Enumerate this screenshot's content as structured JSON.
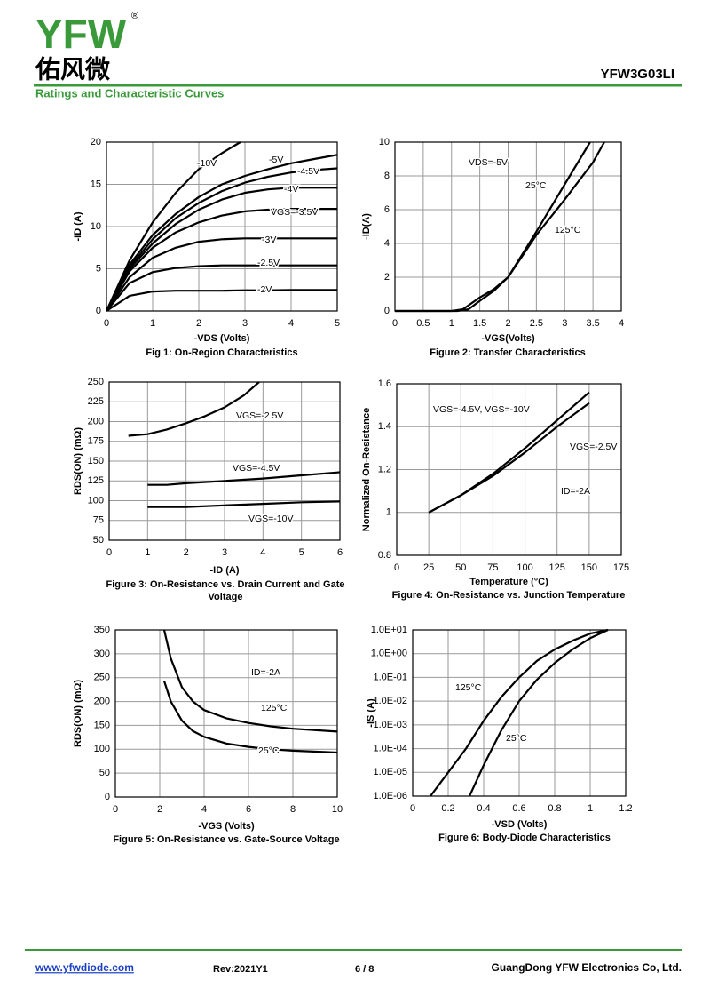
{
  "header": {
    "logo": "YFW",
    "logo_mark": "®",
    "logo_cn": "佑风微",
    "part_number": "YFW3G03LI",
    "section": "Ratings and Characteristic Curves"
  },
  "chart_data": [
    {
      "type": "line",
      "title": "Fig 1: On-Region Characteristics",
      "xlabel": "-VDS (Volts)",
      "ylabel": "-ID (A)",
      "xlim": [
        0,
        5
      ],
      "xticks": [
        0,
        1,
        2,
        3,
        4,
        5
      ],
      "ylim": [
        0,
        20
      ],
      "yticks": [
        0,
        5,
        10,
        15,
        20
      ],
      "grid": true,
      "series": [
        {
          "name": "-10V",
          "color": "#000000",
          "x": [
            0,
            0.5,
            1,
            1.5,
            2,
            2.5,
            2.9
          ],
          "values": [
            0,
            6,
            10.5,
            14,
            16.8,
            18.7,
            20
          ]
        },
        {
          "name": "-5V",
          "color": "#000000",
          "x": [
            0,
            0.5,
            1,
            1.5,
            2,
            2.5,
            3,
            3.5,
            4,
            4.5,
            5
          ],
          "values": [
            0,
            5.5,
            9,
            11.5,
            13.5,
            15,
            16,
            16.8,
            17.5,
            18,
            18.5
          ]
        },
        {
          "name": "-4.5V",
          "color": "#000000",
          "x": [
            0,
            0.5,
            1,
            1.5,
            2,
            2.5,
            3,
            3.5,
            4,
            4.5,
            5
          ],
          "values": [
            0,
            5.2,
            8.5,
            11,
            12.8,
            14.2,
            15.2,
            15.9,
            16.4,
            16.7,
            16.9
          ]
        },
        {
          "name": "-4V",
          "color": "#000000",
          "x": [
            0,
            0.5,
            1,
            1.5,
            2,
            2.5,
            3,
            3.5,
            4,
            4.5,
            5
          ],
          "values": [
            0,
            5,
            8,
            10.3,
            12,
            13.2,
            14,
            14.4,
            14.6,
            14.6,
            14.6
          ]
        },
        {
          "name": "VGS=-3.5V",
          "color": "#000000",
          "x": [
            0,
            0.5,
            1,
            1.5,
            2,
            2.5,
            3,
            3.5,
            4,
            4.5,
            5
          ],
          "values": [
            0,
            4.7,
            7.5,
            9.3,
            10.5,
            11.3,
            11.8,
            12,
            12.1,
            12.1,
            12.1
          ]
        },
        {
          "name": "-3V",
          "color": "#000000",
          "x": [
            0,
            0.5,
            1,
            1.5,
            2,
            2.5,
            3,
            3.5,
            4,
            4.5,
            5
          ],
          "values": [
            0,
            4,
            6.3,
            7.5,
            8.2,
            8.5,
            8.6,
            8.6,
            8.6,
            8.6,
            8.6
          ]
        },
        {
          "name": "-2.5V",
          "color": "#000000",
          "x": [
            0,
            0.5,
            1,
            1.5,
            2,
            2.5,
            3,
            3.5,
            4,
            4.5,
            5
          ],
          "values": [
            0,
            3.3,
            4.6,
            5.1,
            5.3,
            5.4,
            5.4,
            5.4,
            5.4,
            5.4,
            5.4
          ]
        },
        {
          "name": "-2V",
          "color": "#000000",
          "x": [
            0,
            0.5,
            1,
            1.5,
            2,
            2.5,
            3,
            3.5,
            4,
            4.5,
            5
          ],
          "values": [
            0,
            1.8,
            2.3,
            2.4,
            2.4,
            2.4,
            2.45,
            2.45,
            2.5,
            2.5,
            2.5
          ]
        }
      ]
    },
    {
      "type": "line",
      "title": "Figure 2: Transfer Characteristics",
      "xlabel": "-VGS(Volts)",
      "ylabel": "-ID(A)",
      "xlim": [
        0,
        4
      ],
      "xticks": [
        0,
        0.5,
        1,
        1.5,
        2,
        2.5,
        3,
        3.5,
        4
      ],
      "ylim": [
        0,
        10
      ],
      "yticks": [
        0,
        2,
        4,
        6,
        8,
        10
      ],
      "grid": true,
      "annotations": [
        "VDS=-5V"
      ],
      "series": [
        {
          "name": "25°C",
          "color": "#000000",
          "x": [
            0,
            1.1,
            1.3,
            1.5,
            1.75,
            2,
            2.5,
            3,
            3.45
          ],
          "values": [
            0,
            0,
            0.1,
            0.6,
            1.2,
            2,
            4.7,
            7.5,
            10
          ]
        },
        {
          "name": "125°C",
          "color": "#000000",
          "x": [
            0,
            1,
            1.2,
            1.5,
            1.75,
            2,
            2.5,
            3,
            3.5,
            3.7
          ],
          "values": [
            0,
            0,
            0.1,
            0.8,
            1.3,
            2,
            4.5,
            6.6,
            8.8,
            10
          ]
        }
      ]
    },
    {
      "type": "line",
      "title": "Figure 3: On-Resistance vs. Drain Current and Gate Voltage",
      "xlabel": "-ID (A)",
      "ylabel": "RDS(ON) (mΩ)",
      "xlim": [
        0,
        6
      ],
      "xticks": [
        0,
        1,
        2,
        3,
        4,
        5,
        6
      ],
      "ylim": [
        50,
        250
      ],
      "yticks": [
        50,
        75,
        100,
        125,
        150,
        175,
        200,
        225,
        250
      ],
      "grid": true,
      "series": [
        {
          "name": "VGS=-2.5V",
          "color": "#000000",
          "x": [
            0.5,
            1,
            1.5,
            2,
            2.5,
            3,
            3.5,
            3.9
          ],
          "values": [
            182,
            184,
            190,
            198,
            207,
            218,
            233,
            250
          ]
        },
        {
          "name": "VGS=-4.5V",
          "color": "#000000",
          "x": [
            1,
            1.5,
            2,
            3,
            4,
            5,
            6
          ],
          "values": [
            120,
            120,
            122,
            125,
            128,
            132,
            136
          ]
        },
        {
          "name": "VGS=-10V",
          "color": "#000000",
          "x": [
            1,
            2,
            3,
            4,
            5,
            6
          ],
          "values": [
            92,
            92,
            94,
            96,
            98,
            99
          ]
        }
      ]
    },
    {
      "type": "line",
      "title": "Figure 4: On-Resistance vs. Junction Temperature",
      "xlabel": "Temperature (°C)",
      "ylabel": "Normalized On-Resistance",
      "xlim": [
        0,
        175
      ],
      "xticks": [
        0,
        25,
        50,
        75,
        100,
        125,
        150,
        175
      ],
      "ylim": [
        0.8,
        1.6
      ],
      "yticks": [
        0.8,
        1,
        1.2,
        1.4,
        1.6
      ],
      "grid": true,
      "annotations": [
        "ID=-2A"
      ],
      "series": [
        {
          "name": "VGS=-4.5V, VGS=-10V",
          "color": "#000000",
          "x": [
            25,
            50,
            75,
            100,
            125,
            150
          ],
          "values": [
            1,
            1.08,
            1.18,
            1.3,
            1.43,
            1.56
          ]
        },
        {
          "name": "VGS=-2.5V",
          "color": "#000000",
          "x": [
            25,
            50,
            75,
            100,
            125,
            150
          ],
          "values": [
            1,
            1.08,
            1.17,
            1.28,
            1.4,
            1.51
          ]
        }
      ]
    },
    {
      "type": "line",
      "title": "Figure 5: On-Resistance vs. Gate-Source Voltage",
      "xlabel": "-VGS (Volts)",
      "ylabel": "RDS(ON) (mΩ)",
      "xlim": [
        0,
        10
      ],
      "xticks": [
        0,
        2,
        4,
        6,
        8,
        10
      ],
      "ylim": [
        0,
        350
      ],
      "yticks": [
        0,
        50,
        100,
        150,
        200,
        250,
        300,
        350
      ],
      "grid": true,
      "annotations": [
        "ID=-2A"
      ],
      "series": [
        {
          "name": "125°C",
          "color": "#000000",
          "x": [
            2.2,
            2.5,
            3,
            3.5,
            4,
            5,
            6,
            7,
            8,
            10
          ],
          "values": [
            350,
            290,
            230,
            200,
            182,
            165,
            155,
            148,
            143,
            137
          ]
        },
        {
          "name": "25°C",
          "color": "#000000",
          "x": [
            2.2,
            2.5,
            3,
            3.5,
            4,
            5,
            6,
            7,
            8,
            10
          ],
          "values": [
            243,
            200,
            160,
            138,
            126,
            112,
            105,
            100,
            97,
            93
          ]
        }
      ]
    },
    {
      "type": "line",
      "title": "Figure 6: Body-Diode Characteristics",
      "xlabel": "-VSD (Volts)",
      "ylabel": "-IS (A)",
      "xlim": [
        0,
        1.2
      ],
      "xticks": [
        0,
        0.2,
        0.4,
        0.6,
        0.8,
        1,
        1.2
      ],
      "ylim": [
        1e-06,
        10
      ],
      "yscale": "log",
      "grid": true,
      "yticks": [
        {
          "value": 1e-06,
          "label": "1.0E-06"
        },
        {
          "value": 1e-05,
          "label": "1.0E-05"
        },
        {
          "value": 0.0001,
          "label": "1.0E-04"
        },
        {
          "value": 0.001,
          "label": "1.0E-03"
        },
        {
          "value": 0.01,
          "label": "1.0E-02"
        },
        {
          "value": 0.1,
          "label": "1.0E-01"
        },
        {
          "value": 1,
          "label": "1.0E+00"
        },
        {
          "value": 10,
          "label": "1.0E+01"
        }
      ],
      "series": [
        {
          "name": "125°C",
          "color": "#000000",
          "x": [
            0.1,
            0.2,
            0.3,
            0.4,
            0.5,
            0.6,
            0.7,
            0.8,
            0.9,
            1,
            1.1
          ],
          "values": [
            1e-06,
            1e-05,
            0.0001,
            0.0015,
            0.015,
            0.1,
            0.5,
            1.5,
            3.5,
            7,
            10
          ]
        },
        {
          "name": "25°C",
          "color": "#000000",
          "x": [
            0.32,
            0.4,
            0.5,
            0.6,
            0.7,
            0.8,
            0.9,
            1,
            1.1
          ],
          "values": [
            1e-06,
            2e-05,
            0.0006,
            0.01,
            0.08,
            0.4,
            1.5,
            4.5,
            10
          ]
        }
      ]
    }
  ],
  "footer": {
    "url": "www.yfwdiode.com",
    "revision": "Rev:2021Y1",
    "page": "6 / 8",
    "company": "GuangDong YFW Electronics Co, Ltd."
  }
}
